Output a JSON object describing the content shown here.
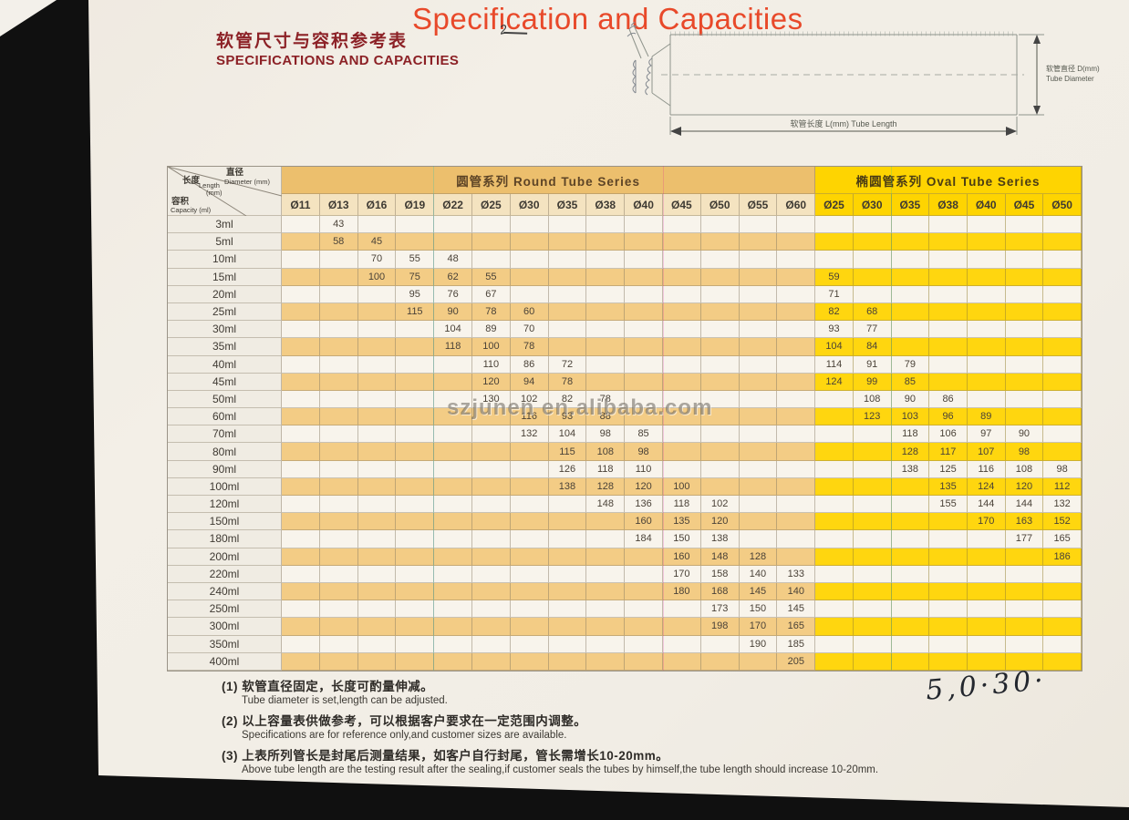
{
  "page_title": "Specification and Capacities",
  "header": {
    "title_cn": "软管尺寸与容积参考表",
    "title_en": "SPECIFICATIONS AND CAPACITIES",
    "handwritten_mark": "2"
  },
  "diagram": {
    "diameter_label_cn": "软管直径 D(mm)",
    "diameter_label_en": "Tube Diameter",
    "length_label": "软管长度 L(mm) Tube Length"
  },
  "table": {
    "corner": {
      "length_cn": "长度",
      "length_en": "Length",
      "length_unit": "(mm)",
      "diameter_cn": "直径",
      "diameter_en": "Diameter (mm)",
      "capacity_cn": "容积",
      "capacity_en": "Capacity (ml)"
    },
    "round_series_label": "圆管系列  Round Tube Series",
    "oval_series_label": "椭圆管系列  Oval Tube Series",
    "round_columns": [
      "Ø11",
      "Ø13",
      "Ø16",
      "Ø19",
      "Ø22",
      "Ø25",
      "Ø30",
      "Ø35",
      "Ø38",
      "Ø40",
      "Ø45",
      "Ø50",
      "Ø55",
      "Ø60"
    ],
    "oval_columns": [
      "Ø25",
      "Ø30",
      "Ø35",
      "Ø38",
      "Ø40",
      "Ø45",
      "Ø50"
    ],
    "rows": [
      {
        "capacity": "3ml",
        "round": [
          "",
          "43",
          "",
          "",
          "",
          "",
          "",
          "",
          "",
          "",
          "",
          "",
          "",
          ""
        ],
        "oval": [
          "",
          "",
          "",
          "",
          "",
          "",
          ""
        ]
      },
      {
        "capacity": "5ml",
        "round": [
          "",
          "58",
          "45",
          "",
          "",
          "",
          "",
          "",
          "",
          "",
          "",
          "",
          "",
          ""
        ],
        "oval": [
          "",
          "",
          "",
          "",
          "",
          "",
          ""
        ]
      },
      {
        "capacity": "10ml",
        "round": [
          "",
          "",
          "70",
          "55",
          "48",
          "",
          "",
          "",
          "",
          "",
          "",
          "",
          "",
          ""
        ],
        "oval": [
          "",
          "",
          "",
          "",
          "",
          "",
          ""
        ]
      },
      {
        "capacity": "15ml",
        "round": [
          "",
          "",
          "100",
          "75",
          "62",
          "55",
          "",
          "",
          "",
          "",
          "",
          "",
          "",
          ""
        ],
        "oval": [
          "59",
          "",
          "",
          "",
          "",
          "",
          ""
        ]
      },
      {
        "capacity": "20ml",
        "round": [
          "",
          "",
          "",
          "95",
          "76",
          "67",
          "",
          "",
          "",
          "",
          "",
          "",
          "",
          ""
        ],
        "oval": [
          "71",
          "",
          "",
          "",
          "",
          "",
          ""
        ]
      },
      {
        "capacity": "25ml",
        "round": [
          "",
          "",
          "",
          "115",
          "90",
          "78",
          "60",
          "",
          "",
          "",
          "",
          "",
          "",
          ""
        ],
        "oval": [
          "82",
          "68",
          "",
          "",
          "",
          "",
          ""
        ]
      },
      {
        "capacity": "30ml",
        "round": [
          "",
          "",
          "",
          "",
          "104",
          "89",
          "70",
          "",
          "",
          "",
          "",
          "",
          "",
          ""
        ],
        "oval": [
          "93",
          "77",
          "",
          "",
          "",
          "",
          ""
        ]
      },
      {
        "capacity": "35ml",
        "round": [
          "",
          "",
          "",
          "",
          "118",
          "100",
          "78",
          "",
          "",
          "",
          "",
          "",
          "",
          ""
        ],
        "oval": [
          "104",
          "84",
          "",
          "",
          "",
          "",
          ""
        ]
      },
      {
        "capacity": "40ml",
        "round": [
          "",
          "",
          "",
          "",
          "",
          "110",
          "86",
          "72",
          "",
          "",
          "",
          "",
          "",
          ""
        ],
        "oval": [
          "114",
          "91",
          "79",
          "",
          "",
          "",
          ""
        ]
      },
      {
        "capacity": "45ml",
        "round": [
          "",
          "",
          "",
          "",
          "",
          "120",
          "94",
          "78",
          "",
          "",
          "",
          "",
          "",
          ""
        ],
        "oval": [
          "124",
          "99",
          "85",
          "",
          "",
          "",
          ""
        ]
      },
      {
        "capacity": "50ml",
        "round": [
          "",
          "",
          "",
          "",
          "",
          "130",
          "102",
          "82",
          "78",
          "",
          "",
          "",
          "",
          ""
        ],
        "oval": [
          "",
          "108",
          "90",
          "86",
          "",
          "",
          ""
        ]
      },
      {
        "capacity": "60ml",
        "round": [
          "",
          "",
          "",
          "",
          "",
          "",
          "116",
          "93",
          "88",
          "",
          "",
          "",
          "",
          ""
        ],
        "oval": [
          "",
          "123",
          "103",
          "96",
          "89",
          "",
          ""
        ]
      },
      {
        "capacity": "70ml",
        "round": [
          "",
          "",
          "",
          "",
          "",
          "",
          "132",
          "104",
          "98",
          "85",
          "",
          "",
          "",
          ""
        ],
        "oval": [
          "",
          "",
          "118",
          "106",
          "97",
          "90",
          ""
        ]
      },
      {
        "capacity": "80ml",
        "round": [
          "",
          "",
          "",
          "",
          "",
          "",
          "",
          "115",
          "108",
          "98",
          "",
          "",
          "",
          ""
        ],
        "oval": [
          "",
          "",
          "128",
          "117",
          "107",
          "98",
          ""
        ]
      },
      {
        "capacity": "90ml",
        "round": [
          "",
          "",
          "",
          "",
          "",
          "",
          "",
          "126",
          "118",
          "110",
          "",
          "",
          "",
          ""
        ],
        "oval": [
          "",
          "",
          "138",
          "125",
          "116",
          "108",
          "98"
        ]
      },
      {
        "capacity": "100ml",
        "round": [
          "",
          "",
          "",
          "",
          "",
          "",
          "",
          "138",
          "128",
          "120",
          "100",
          "",
          "",
          ""
        ],
        "oval": [
          "",
          "",
          "",
          "135",
          "124",
          "120",
          "112"
        ]
      },
      {
        "capacity": "120ml",
        "round": [
          "",
          "",
          "",
          "",
          "",
          "",
          "",
          "",
          "148",
          "136",
          "118",
          "102",
          "",
          ""
        ],
        "oval": [
          "",
          "",
          "",
          "155",
          "144",
          "144",
          "132"
        ]
      },
      {
        "capacity": "150ml",
        "round": [
          "",
          "",
          "",
          "",
          "",
          "",
          "",
          "",
          "",
          "160",
          "135",
          "120",
          "",
          ""
        ],
        "oval": [
          "",
          "",
          "",
          "",
          "170",
          "163",
          "152"
        ]
      },
      {
        "capacity": "180ml",
        "round": [
          "",
          "",
          "",
          "",
          "",
          "",
          "",
          "",
          "",
          "184",
          "150",
          "138",
          "",
          ""
        ],
        "oval": [
          "",
          "",
          "",
          "",
          "",
          "177",
          "165"
        ]
      },
      {
        "capacity": "200ml",
        "round": [
          "",
          "",
          "",
          "",
          "",
          "",
          "",
          "",
          "",
          "",
          "160",
          "148",
          "128",
          ""
        ],
        "oval": [
          "",
          "",
          "",
          "",
          "",
          "",
          "186"
        ]
      },
      {
        "capacity": "220ml",
        "round": [
          "",
          "",
          "",
          "",
          "",
          "",
          "",
          "",
          "",
          "",
          "170",
          "158",
          "140",
          "133"
        ],
        "oval": [
          "",
          "",
          "",
          "",
          "",
          "",
          ""
        ]
      },
      {
        "capacity": "240ml",
        "round": [
          "",
          "",
          "",
          "",
          "",
          "",
          "",
          "",
          "",
          "",
          "180",
          "168",
          "145",
          "140"
        ],
        "oval": [
          "",
          "",
          "",
          "",
          "",
          "",
          ""
        ]
      },
      {
        "capacity": "250ml",
        "round": [
          "",
          "",
          "",
          "",
          "",
          "",
          "",
          "",
          "",
          "",
          "",
          "173",
          "150",
          "145"
        ],
        "oval": [
          "",
          "",
          "",
          "",
          "",
          "",
          ""
        ]
      },
      {
        "capacity": "300ml",
        "round": [
          "",
          "",
          "",
          "",
          "",
          "",
          "",
          "",
          "",
          "",
          "",
          "198",
          "170",
          "165"
        ],
        "oval": [
          "",
          "",
          "",
          "",
          "",
          "",
          ""
        ]
      },
      {
        "capacity": "350ml",
        "round": [
          "",
          "",
          "",
          "",
          "",
          "",
          "",
          "",
          "",
          "",
          "",
          "",
          "190",
          "185"
        ],
        "oval": [
          "",
          "",
          "",
          "",
          "",
          "",
          ""
        ]
      },
      {
        "capacity": "400ml",
        "round": [
          "",
          "",
          "",
          "",
          "",
          "",
          "",
          "",
          "",
          "",
          "",
          "",
          "",
          "205"
        ],
        "oval": [
          "",
          "",
          "",
          "",
          "",
          "",
          ""
        ]
      }
    ]
  },
  "watermark": "szjunen en.alibaba.com",
  "handwriting": "5,0·30·",
  "notes": [
    {
      "num": "(1)",
      "cn": "软管直径固定，长度可酌量伸减。",
      "en": "Tube diameter is set,length can be adjusted."
    },
    {
      "num": "(2)",
      "cn": "以上容量表供做参考，可以根据客户要求在一定范围内调整。",
      "en": "Specifications are for reference only,and customer sizes are available."
    },
    {
      "num": "(3)",
      "cn": "上表所列管长是封尾后测量结果，如客户自行封尾，管长需增长10-20mm。",
      "en": "Above tube length are the testing result after the sealing,if customer seals the tubes by himself,the tube length should increase 10-20mm."
    }
  ],
  "colors": {
    "round_band": "#ecbf6d",
    "round_stripe": "#f3cc85",
    "oval_band": "#fed401",
    "oval_stripe": "#ffd60f",
    "title_red": "#8c2126",
    "heading_orange": "#e8492a",
    "page_bg": "#f1ede5"
  }
}
